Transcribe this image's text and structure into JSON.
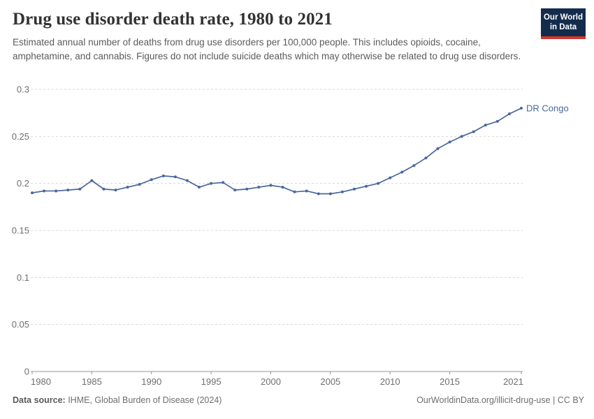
{
  "header": {
    "title": "Drug use disorder death rate, 1980 to 2021",
    "subtitle": "Estimated annual number of deaths from drug use disorders per 100,000 people. This includes opioids, cocaine, amphetamine, and cannabis. Figures do not include suicide deaths which may otherwise be related to drug use disorders.",
    "logo": {
      "line1": "Our World",
      "line2": "in Data",
      "bg": "#142c4c",
      "accent": "#d0372d"
    }
  },
  "chart_data": {
    "type": "line",
    "title": "Drug use disorder death rate, 1980 to 2021",
    "xlabel": "",
    "ylabel": "",
    "xlim": [
      1980,
      2021
    ],
    "ylim": [
      0,
      0.3
    ],
    "grid": true,
    "legend_position": "end-of-line",
    "x_ticks": [
      1980,
      1985,
      1990,
      1995,
      2000,
      2005,
      2010,
      2015,
      2021
    ],
    "y_ticks": [
      0,
      0.05,
      0.1,
      0.15,
      0.2,
      0.25,
      0.3
    ],
    "y_tick_labels": [
      "0",
      "0.05",
      "0.1",
      "0.15",
      "0.2",
      "0.25",
      "0.3"
    ],
    "series": [
      {
        "name": "DR Congo",
        "color": "#4a679c",
        "x": [
          1980,
          1981,
          1982,
          1983,
          1984,
          1985,
          1986,
          1987,
          1988,
          1989,
          1990,
          1991,
          1992,
          1993,
          1994,
          1995,
          1996,
          1997,
          1998,
          1999,
          2000,
          2001,
          2002,
          2003,
          2004,
          2005,
          2006,
          2007,
          2008,
          2009,
          2010,
          2011,
          2012,
          2013,
          2014,
          2015,
          2016,
          2017,
          2018,
          2019,
          2020,
          2021
        ],
        "values": [
          0.19,
          0.192,
          0.192,
          0.193,
          0.194,
          0.203,
          0.194,
          0.193,
          0.196,
          0.199,
          0.204,
          0.208,
          0.207,
          0.203,
          0.196,
          0.2,
          0.201,
          0.193,
          0.194,
          0.196,
          0.198,
          0.196,
          0.191,
          0.192,
          0.189,
          0.189,
          0.191,
          0.194,
          0.197,
          0.2,
          0.206,
          0.212,
          0.219,
          0.227,
          0.237,
          0.244,
          0.25,
          0.255,
          0.262,
          0.266,
          0.274,
          0.28
        ]
      }
    ],
    "style": {
      "gridline_color": "#d8d8d8",
      "axis_color": "#949494",
      "tick_label_color": "#6e6e6e"
    }
  },
  "footer": {
    "source_label": "Data source:",
    "source_text": " IHME, Global Burden of Disease (2024)",
    "link_text": "OurWorldinData.org/illicit-drug-use",
    "divider": " | ",
    "license": "CC BY"
  }
}
